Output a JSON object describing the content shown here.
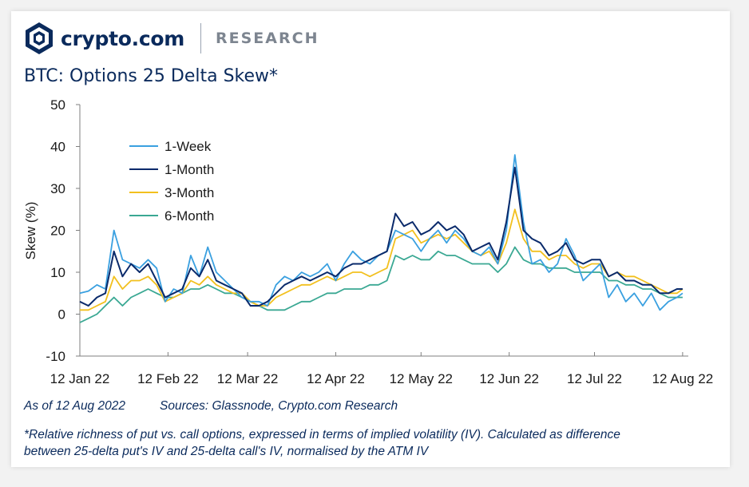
{
  "brand": {
    "name": "crypto.com",
    "section": "RESEARCH"
  },
  "notes": {
    "as_of": "As of 12 Aug 2022",
    "sources": "Sources: Glassnode, Crypto.com Research",
    "footnote_line1": "*Relative richness of put vs. call options, expressed in terms of implied volatility (IV). Calculated as difference",
    "footnote_line2": "between 25-delta put's IV and 25-delta call's IV, normalised by the ATM IV"
  },
  "chart_data": {
    "type": "line",
    "title": "BTC: Options 25 Delta Skew*",
    "ylabel": "Skew (%)",
    "xlabel": "",
    "ylim": [
      -10,
      50
    ],
    "yticks": [
      -10,
      0,
      10,
      20,
      30,
      40,
      50
    ],
    "xlim": [
      "12 Jan 22",
      "14 Aug 22"
    ],
    "xticks": [
      "12 Jan 22",
      "12 Feb 22",
      "12 Mar 22",
      "12 Apr 22",
      "12 May 22",
      "12 Jun 22",
      "12 Jul 22",
      "12 Aug 22"
    ],
    "legend_position": "top-left",
    "grid": false,
    "colors": {
      "1-Week": "#3aa0e0",
      "1-Month": "#0a2a6b",
      "3-Month": "#f2c01e",
      "6-Month": "#3aa893"
    },
    "x": [
      "12 Jan 22",
      "15 Jan 22",
      "18 Jan 22",
      "21 Jan 22",
      "24 Jan 22",
      "27 Jan 22",
      "30 Jan 22",
      "2 Feb 22",
      "5 Feb 22",
      "8 Feb 22",
      "11 Feb 22",
      "14 Feb 22",
      "17 Feb 22",
      "20 Feb 22",
      "23 Feb 22",
      "26 Feb 22",
      "1 Mar 22",
      "4 Mar 22",
      "7 Mar 22",
      "10 Mar 22",
      "13 Mar 22",
      "16 Mar 22",
      "19 Mar 22",
      "22 Mar 22",
      "25 Mar 22",
      "28 Mar 22",
      "31 Mar 22",
      "3 Apr 22",
      "6 Apr 22",
      "9 Apr 22",
      "12 Apr 22",
      "15 Apr 22",
      "18 Apr 22",
      "21 Apr 22",
      "24 Apr 22",
      "27 Apr 22",
      "30 Apr 22",
      "3 May 22",
      "6 May 22",
      "9 May 22",
      "12 May 22",
      "15 May 22",
      "18 May 22",
      "21 May 22",
      "24 May 22",
      "27 May 22",
      "30 May 22",
      "2 Jun 22",
      "5 Jun 22",
      "8 Jun 22",
      "11 Jun 22",
      "14 Jun 22",
      "17 Jun 22",
      "20 Jun 22",
      "23 Jun 22",
      "26 Jun 22",
      "29 Jun 22",
      "2 Jul 22",
      "5 Jul 22",
      "8 Jul 22",
      "11 Jul 22",
      "14 Jul 22",
      "17 Jul 22",
      "20 Jul 22",
      "23 Jul 22",
      "26 Jul 22",
      "29 Jul 22",
      "1 Aug 22",
      "4 Aug 22",
      "7 Aug 22",
      "10 Aug 22",
      "12 Aug 22"
    ],
    "series": [
      {
        "name": "1-Week",
        "values": [
          5,
          5.5,
          7,
          6,
          20,
          13,
          12,
          11,
          13,
          11,
          3,
          6,
          5,
          14,
          9,
          16,
          10,
          8,
          6,
          4,
          3,
          3,
          2,
          7,
          9,
          8,
          10,
          9,
          10,
          12,
          8,
          12,
          15,
          13,
          12,
          14,
          15,
          20,
          19,
          18,
          15,
          18,
          20,
          17,
          20,
          18,
          15,
          14,
          16,
          12,
          20,
          38,
          22,
          12,
          13,
          10,
          12,
          18,
          14,
          8,
          10,
          12,
          4,
          7,
          3,
          5,
          2,
          5,
          1,
          3,
          4,
          5
        ]
      },
      {
        "name": "1-Month",
        "values": [
          3,
          2,
          4,
          5,
          15,
          9,
          12,
          10,
          12,
          8,
          4,
          5,
          6,
          11,
          9,
          13,
          8,
          7,
          6,
          5,
          2,
          2,
          3,
          5,
          7,
          8,
          9,
          8,
          9,
          10,
          9,
          11,
          12,
          12,
          13,
          14,
          15,
          24,
          21,
          22,
          19,
          20,
          22,
          20,
          21,
          19,
          15,
          16,
          17,
          13,
          22,
          35,
          20,
          18,
          17,
          14,
          15,
          17,
          13,
          12,
          13,
          13,
          9,
          10,
          8,
          8,
          7,
          7,
          5,
          5,
          6,
          6
        ]
      },
      {
        "name": "3-Month",
        "values": [
          1,
          1,
          2,
          3,
          9,
          6,
          8,
          8,
          9,
          7,
          3,
          4,
          5,
          8,
          7,
          9,
          7,
          6,
          5,
          5,
          3,
          2,
          2,
          4,
          5,
          6,
          7,
          7,
          8,
          9,
          8,
          9,
          10,
          10,
          9,
          10,
          11,
          18,
          19,
          20,
          17,
          18,
          19,
          18,
          19,
          17,
          15,
          14,
          15,
          12,
          17,
          25,
          18,
          15,
          15,
          13,
          14,
          14,
          12,
          11,
          12,
          12,
          9,
          10,
          9,
          9,
          8,
          7,
          6,
          5,
          5,
          6
        ]
      },
      {
        "name": "6-Month",
        "values": [
          -2,
          -1,
          0,
          2,
          4,
          2,
          4,
          5,
          6,
          5,
          4,
          4,
          5,
          6,
          6,
          7,
          6,
          5,
          5,
          4,
          3,
          2,
          1,
          1,
          1,
          2,
          3,
          3,
          4,
          5,
          5,
          6,
          6,
          6,
          7,
          7,
          8,
          14,
          13,
          14,
          13,
          13,
          15,
          14,
          14,
          13,
          12,
          12,
          12,
          10,
          12,
          16,
          13,
          12,
          12,
          11,
          11,
          11,
          10,
          10,
          10,
          10,
          8,
          8,
          7,
          7,
          6,
          6,
          5,
          4,
          4,
          4
        ]
      }
    ]
  }
}
